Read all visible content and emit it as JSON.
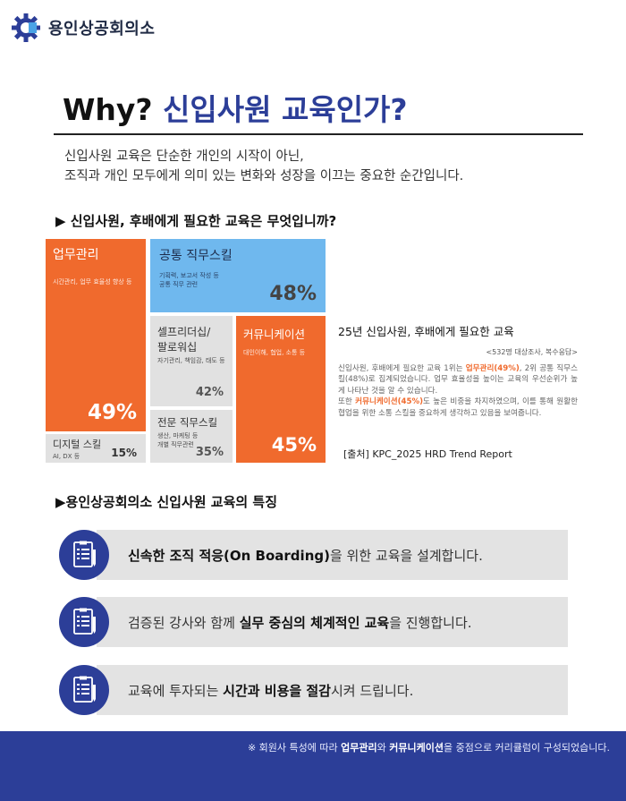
{
  "header": {
    "logo_name": "용인상공회의소"
  },
  "title": {
    "prefix": "Why?",
    "accent": "신입사원 교육인가?"
  },
  "intro": {
    "line1": "신입사원 교육은 단순한 개인의 시작이 아닌,",
    "line2": "조직과 개인 모두에게 의미 있는 변화와 성장을 이끄는 중요한 순간입니다."
  },
  "section1": {
    "heading": "▶  신입사원, 후배에게 필요한 교육은 무엇입니까?"
  },
  "chart_data": {
    "type": "table",
    "title": "25년 신입사원, 후배에게 필요한 교육",
    "items": [
      {
        "name": "업무관리",
        "sub": "시간관리, 업무 효율성 향상 등",
        "value": 49,
        "label": "49%"
      },
      {
        "name": "공통 직무스킬",
        "sub1": "기획력, 보고서 작성 등",
        "sub2": "공통 직무 관련",
        "value": 48,
        "label": "48%"
      },
      {
        "name1": "셀프리더십/",
        "name2": "팔로워십",
        "sub": "자기관리, 책임감, 태도 등",
        "value": 42,
        "label": "42%"
      },
      {
        "name": "커뮤니케이션",
        "sub": "대인이해, 협업, 소통 등",
        "value": 45,
        "label": "45%"
      },
      {
        "name": "전문 직무스킬",
        "sub1": "생산, 마케팅 등",
        "sub2": "개별 직무관련",
        "value": 35,
        "label": "35%"
      },
      {
        "name": "디지털 스킬",
        "sub": "AI, DX 등",
        "value": 15,
        "label": "15%"
      }
    ],
    "colors": {
      "orange": "#f06a2d",
      "blue": "#6fb8ee",
      "grey": "#e1e1e1"
    }
  },
  "survey": {
    "title": "25년 신입사원, 후배에게 필요한 교육",
    "meta": "<532명 대상조사, 복수응답>",
    "p1": "신입사원, 후배에게 필요한 교육 1위는 ",
    "p1_hl": "업무관리(49%)",
    "p1_rest": ", 2위 공통 직무스킬(48%)로 집계되었습니다. 업무 효율성을 높이는 교육의 우선순위가 높게 나타난 것을 알 수 있습니다.",
    "p2": "또한 ",
    "p2_hl": "커뮤니케이션(45%)",
    "p2_rest": "도 높은 비중을 차지하였으며, 이를 통해 원활한 협업을 위한 소통 스킬을 중요하게 생각하고 있음을 보여줍니다.",
    "source": "[출처] KPC_2025 HRD Trend Report"
  },
  "section2": {
    "heading": "▶용인상공회의소 신입사원 교육의 특징"
  },
  "features": [
    {
      "pre": "",
      "bold": "신속한 조직 적응(On Boarding)",
      "post": "을 위한 교육을 설계합니다."
    },
    {
      "pre": "검증된 강사와 함께 ",
      "bold": "실무 중심의 체계적인 교육",
      "post": "을 진행합니다."
    },
    {
      "pre": "교육에 투자되는 ",
      "bold": "시간과 비용을 절감",
      "post": "시켜 드립니다."
    }
  ],
  "footer": {
    "pre": "※ 회원사 특성에 따라 ",
    "b1": "업무관리",
    "mid": "와 ",
    "b2": "커뮤니케이션",
    "post": "을 중점으로 커리큘럼이 구성되었습니다."
  },
  "colors": {
    "brand_blue": "#2c3e98",
    "accent_orange": "#f06a2d",
    "feature_bar": "#e3e3e3"
  },
  "icons": {
    "logo": "gear-icon",
    "feature": "document-list-icon"
  }
}
